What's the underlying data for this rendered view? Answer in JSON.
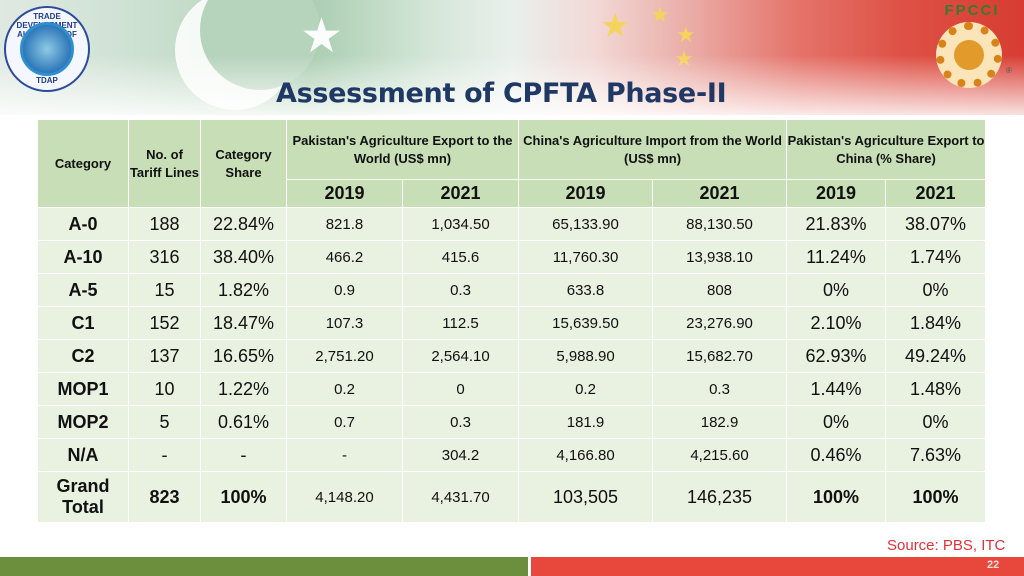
{
  "header": {
    "title": "Assessment of CPFTA Phase-II",
    "left_logo_name": "TDAP",
    "left_logo_ring_text": "TRADE DEVELOPMENT AUTHORITY OF PAKISTAN",
    "right_logo_name": "FPCCI"
  },
  "table": {
    "headers": {
      "category": "Category",
      "tariff_lines": "No. of Tariff Lines",
      "category_share": "Category Share",
      "pk_export_world": "Pakistan's Agriculture Export to the World (US$ mn)",
      "cn_import_world": "China's Agriculture Import from the World (US$ mn)",
      "pk_export_china": "Pakistan's Agriculture Export to China (% Share)",
      "year_2019": "2019",
      "year_2021": "2021"
    },
    "rows": [
      {
        "category": "A-0",
        "lines": "188",
        "share": "22.84%",
        "pkw2019": "821.8",
        "pkw2021": "1,034.50",
        "cnw2019": "65,133.90",
        "cnw2021": "88,130.50",
        "pkc2019": "21.83%",
        "pkc2021": "38.07%"
      },
      {
        "category": "A-10",
        "lines": "316",
        "share": "38.40%",
        "pkw2019": "466.2",
        "pkw2021": "415.6",
        "cnw2019": "11,760.30",
        "cnw2021": "13,938.10",
        "pkc2019": "11.24%",
        "pkc2021": "1.74%"
      },
      {
        "category": "A-5",
        "lines": "15",
        "share": "1.82%",
        "pkw2019": "0.9",
        "pkw2021": "0.3",
        "cnw2019": "633.8",
        "cnw2021": "808",
        "pkc2019": "0%",
        "pkc2021": "0%"
      },
      {
        "category": "C1",
        "lines": "152",
        "share": "18.47%",
        "pkw2019": "107.3",
        "pkw2021": "112.5",
        "cnw2019": "15,639.50",
        "cnw2021": "23,276.90",
        "pkc2019": "2.10%",
        "pkc2021": "1.84%"
      },
      {
        "category": "C2",
        "lines": "137",
        "share": "16.65%",
        "pkw2019": "2,751.20",
        "pkw2021": "2,564.10",
        "cnw2019": "5,988.90",
        "cnw2021": "15,682.70",
        "pkc2019": "62.93%",
        "pkc2021": "49.24%"
      },
      {
        "category": "MOP1",
        "lines": "10",
        "share": "1.22%",
        "pkw2019": "0.2",
        "pkw2021": "0",
        "cnw2019": "0.2",
        "cnw2021": "0.3",
        "pkc2019": "1.44%",
        "pkc2021": "1.48%"
      },
      {
        "category": "MOP2",
        "lines": "5",
        "share": "0.61%",
        "pkw2019": "0.7",
        "pkw2021": "0.3",
        "cnw2019": "181.9",
        "cnw2021": "182.9",
        "pkc2019": "0%",
        "pkc2021": "0%"
      },
      {
        "category": "N/A",
        "lines": "-",
        "share": "-",
        "pkw2019": "-",
        "pkw2021": "304.2",
        "cnw2019": "4,166.80",
        "cnw2021": "4,215.60",
        "pkc2019": "0.46%",
        "pkc2021": "7.63%"
      }
    ],
    "total": {
      "category": "Grand Total",
      "lines": "823",
      "share": "100%",
      "pkw2019": "4,148.20",
      "pkw2021": "4,431.70",
      "cnw2019": "103,505",
      "cnw2021": "146,235",
      "pkc2019": "100%",
      "pkc2021": "100%"
    }
  },
  "footer": {
    "source": "Source: PBS, ITC",
    "page_number": "22"
  },
  "colors": {
    "header_fill": "#c7deb6",
    "body_fill": "#e9f1e1",
    "title": "#1f3864",
    "source": "#e0303a",
    "footer_green": "#6b8f3c",
    "footer_red": "#e8473b"
  }
}
